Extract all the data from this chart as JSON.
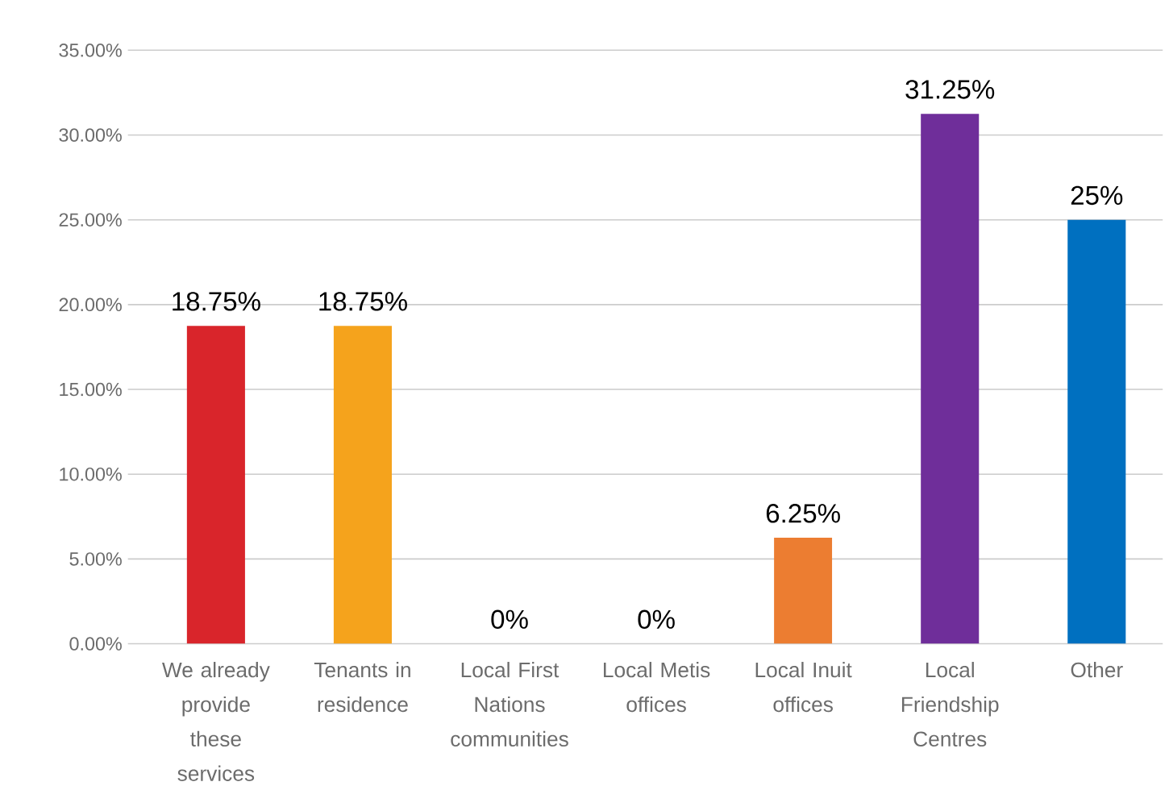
{
  "chart_data": {
    "type": "bar",
    "categories": [
      "We already provide these services",
      "Tenants in residence",
      "Local First Nations communities",
      "Local Metis offices",
      "Local Inuit offices",
      "Local Friendship Centres",
      "Other"
    ],
    "values": [
      18.75,
      18.75,
      0,
      0,
      6.25,
      31.25,
      25
    ],
    "colors": [
      "#d9252b",
      "#f5a31c",
      "#77a031",
      "#3a7a35",
      "#ec7d31",
      "#6f2e9a",
      "#0070c0"
    ],
    "value_labels": [
      "18.75%",
      "18.75%",
      "0%",
      "0%",
      "6.25%",
      "31.25%",
      "25%"
    ],
    "ylim": [
      0,
      35
    ],
    "yticks": [
      {
        "value": 0,
        "label": "0.00%"
      },
      {
        "value": 5,
        "label": "5.00%"
      },
      {
        "value": 10,
        "label": "10.00%"
      },
      {
        "value": 15,
        "label": "15.00%"
      },
      {
        "value": 20,
        "label": "20.00%"
      },
      {
        "value": 25,
        "label": "25.00%"
      },
      {
        "value": 30,
        "label": "30.00%"
      },
      {
        "value": 35,
        "label": "35.00%"
      }
    ],
    "grid": "y"
  }
}
